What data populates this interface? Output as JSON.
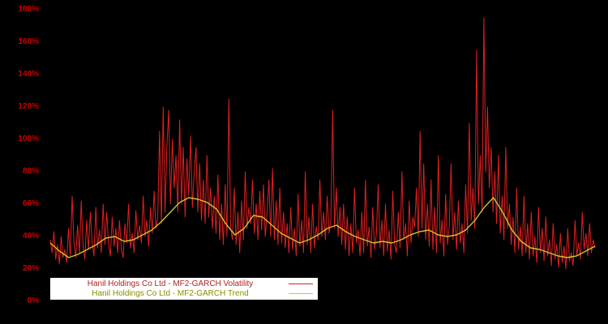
{
  "page": {
    "background": "#000000"
  },
  "chart_data": {
    "type": "line",
    "title": "",
    "xlabel": "",
    "ylabel": "",
    "ylim": [
      0,
      180
    ],
    "grid": false,
    "legend_position": "bottom-left",
    "axis_label_color": "#cc0000",
    "y_ticks": [
      "0%",
      "20%",
      "40%",
      "60%",
      "80%",
      "100%",
      "120%",
      "140%",
      "160%",
      "180%"
    ],
    "series": [
      {
        "name": "Hanil Holdings Co Ltd - MF2-GARCH Volatility",
        "color": "#e02020",
        "values": [
          38,
          30,
          43,
          26,
          35,
          23,
          40,
          27,
          32,
          24,
          45,
          28,
          65,
          36,
          27,
          47,
          30,
          62,
          34,
          26,
          50,
          32,
          55,
          36,
          28,
          58,
          33,
          44,
          30,
          60,
          35,
          55,
          35,
          28,
          52,
          34,
          45,
          30,
          50,
          32,
          27,
          48,
          36,
          60,
          33,
          42,
          30,
          56,
          38,
          47,
          36,
          65,
          40,
          50,
          34,
          58,
          42,
          68,
          45,
          52,
          105,
          48,
          120,
          55,
          95,
          118,
          60,
          100,
          70,
          90,
          55,
          112,
          60,
          95,
          52,
          88,
          65,
          102,
          58,
          80,
          95,
          55,
          85,
          50,
          75,
          48,
          90,
          52,
          70,
          45,
          65,
          42,
          78,
          38,
          60,
          35,
          72,
          40,
          125,
          45,
          38,
          70,
          35,
          55,
          30,
          62,
          38,
          80,
          45,
          58,
          48,
          75,
          42,
          60,
          38,
          68,
          44,
          72,
          40,
          55,
          75,
          40,
          82,
          38,
          62,
          35,
          70,
          36,
          55,
          33,
          48,
          30,
          58,
          32,
          45,
          28,
          66,
          34,
          50,
          30,
          80,
          35,
          52,
          30,
          60,
          33,
          46,
          38,
          75,
          40,
          55,
          38,
          65,
          42,
          50,
          118,
          45,
          70,
          40,
          58,
          35,
          60,
          32,
          52,
          28,
          48,
          30,
          70,
          36,
          44,
          28,
          55,
          30,
          75,
          34,
          46,
          27,
          58,
          32,
          42,
          72,
          33,
          50,
          28,
          60,
          31,
          44,
          26,
          68,
          35,
          30,
          55,
          33,
          80,
          38,
          48,
          28,
          62,
          36,
          52,
          46,
          70,
          40,
          105,
          45,
          85,
          38,
          60,
          34,
          75,
          32,
          58,
          30,
          90,
          36,
          50,
          28,
          66,
          35,
          46,
          85,
          38,
          55,
          32,
          62,
          36,
          48,
          30,
          72,
          42,
          110,
          50,
          70,
          45,
          155,
          60,
          90,
          55,
          175,
          80,
          120,
          70,
          95,
          55,
          80,
          48,
          90,
          42,
          65,
          38,
          95,
          45,
          60,
          35,
          52,
          30,
          70,
          32,
          46,
          28,
          65,
          30,
          48,
          26,
          55,
          28,
          40,
          24,
          58,
          30,
          45,
          25,
          52,
          28,
          38,
          22,
          48,
          26,
          35,
          21,
          42,
          24,
          34,
          20,
          45,
          25,
          30,
          22,
          50,
          28,
          36,
          26,
          55,
          32,
          42,
          28,
          48,
          30,
          38,
          33
        ]
      },
      {
        "name": "Hanil Holdings Co Ltd - MF2-GARCH Trend",
        "color": "#cdc62c",
        "values": [
          36,
          31,
          27,
          29,
          32,
          35,
          39,
          40,
          37,
          38,
          41,
          44,
          49,
          55,
          61,
          64,
          63,
          61,
          57,
          48,
          41,
          45,
          53,
          52,
          47,
          42,
          39,
          36,
          38,
          41,
          45,
          47,
          43,
          40,
          38,
          36,
          37,
          36,
          38,
          41,
          43,
          44,
          41,
          40,
          41,
          44,
          50,
          58,
          64,
          55,
          44,
          37,
          33,
          32,
          30,
          28,
          27,
          28,
          31,
          34
        ]
      }
    ]
  },
  "legend": {
    "volatility_label": "Hanil Holdings Co Ltd - MF2-GARCH Volatility",
    "trend_label": "Hanil Holdings Co Ltd - MF2-GARCH Trend"
  }
}
